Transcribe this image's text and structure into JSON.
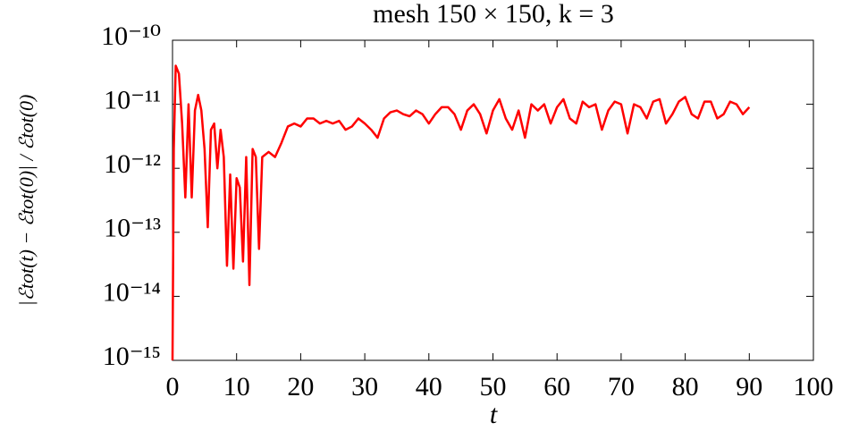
{
  "chart_data": {
    "type": "line",
    "title": "mesh 150 × 150, k = 3",
    "xlabel": "t",
    "ylabel": "|ℰtot(t) − ℰtot(0)| / ℰtot(0)",
    "color": "#ff0000",
    "ylog": true,
    "xlim": [
      0,
      100
    ],
    "xticks": [
      0,
      10,
      20,
      30,
      40,
      50,
      60,
      70,
      80,
      90,
      100
    ],
    "ylim": [
      1e-15,
      1e-10
    ],
    "yticks": [
      {
        "value": 1e-15,
        "label": "10⁻¹⁵"
      },
      {
        "value": 1e-14,
        "label": "10⁻¹⁴"
      },
      {
        "value": 1e-13,
        "label": "10⁻¹³"
      },
      {
        "value": 1e-12,
        "label": "10⁻¹²"
      },
      {
        "value": 1e-11,
        "label": "10⁻¹¹"
      },
      {
        "value": 1e-10,
        "label": "10⁻¹⁰"
      }
    ],
    "x": [
      0,
      0.2,
      0.5,
      1.0,
      1.5,
      2.0,
      2.5,
      3.0,
      3.5,
      4.0,
      4.5,
      5.0,
      5.5,
      6.0,
      6.5,
      7.0,
      7.5,
      8.0,
      8.5,
      9.0,
      9.5,
      10.0,
      10.5,
      11.0,
      11.5,
      12.0,
      12.5,
      13.0,
      13.5,
      14.0,
      15,
      16,
      17,
      18,
      19,
      20,
      21,
      22,
      23,
      24,
      25,
      26,
      27,
      28,
      29,
      30,
      31,
      32,
      33,
      34,
      35,
      36,
      37,
      38,
      39,
      40,
      41,
      42,
      43,
      44,
      45,
      46,
      47,
      48,
      49,
      50,
      51,
      52,
      53,
      54,
      55,
      56,
      57,
      58,
      59,
      60,
      61,
      62,
      63,
      64,
      65,
      66,
      67,
      68,
      69,
      70,
      71,
      72,
      73,
      74,
      75,
      76,
      77,
      78,
      79,
      80,
      81,
      82,
      83,
      84,
      85,
      86,
      87,
      88,
      89,
      90
    ],
    "values": [
      1e-15,
      2e-12,
      4e-11,
      3e-11,
      5e-12,
      3.5e-13,
      1e-11,
      3.5e-13,
      8e-12,
      1.4e-11,
      8e-12,
      2e-12,
      1.2e-13,
      4e-12,
      5e-12,
      1e-12,
      4e-12,
      1.5e-12,
      3e-14,
      8e-13,
      2.7e-14,
      7e-13,
      5e-13,
      3.5e-14,
      1.5e-12,
      1.5e-14,
      2e-12,
      1.5e-12,
      5.5e-14,
      1.5e-12,
      1.8e-12,
      1.5e-12,
      2.5e-12,
      4.5e-12,
      5e-12,
      4.5e-12,
      6e-12,
      6e-12,
      5e-12,
      5.5e-12,
      5e-12,
      5.5e-12,
      4e-12,
      4.5e-12,
      6e-12,
      5e-12,
      4e-12,
      3e-12,
      6e-12,
      7.5e-12,
      8e-12,
      7e-12,
      6.5e-12,
      8e-12,
      7e-12,
      5e-12,
      7e-12,
      9e-12,
      9e-12,
      7e-12,
      4e-12,
      8e-12,
      1e-11,
      7e-12,
      3.5e-12,
      8e-12,
      1.2e-11,
      6e-12,
      4e-12,
      8e-12,
      3e-12,
      1e-11,
      8e-12,
      1e-11,
      5e-12,
      9e-12,
      1.2e-11,
      6e-12,
      5e-12,
      1.1e-11,
      9e-12,
      1e-11,
      4e-12,
      8e-12,
      1.1e-11,
      1e-11,
      3.5e-12,
      1e-11,
      9e-12,
      6e-12,
      1.1e-11,
      1.2e-11,
      5e-12,
      7e-12,
      1.1e-11,
      1.3e-11,
      7e-12,
      6e-12,
      1.1e-11,
      1.1e-11,
      6e-12,
      7e-12,
      1.1e-11,
      1e-11,
      7e-12,
      9e-12
    ]
  }
}
